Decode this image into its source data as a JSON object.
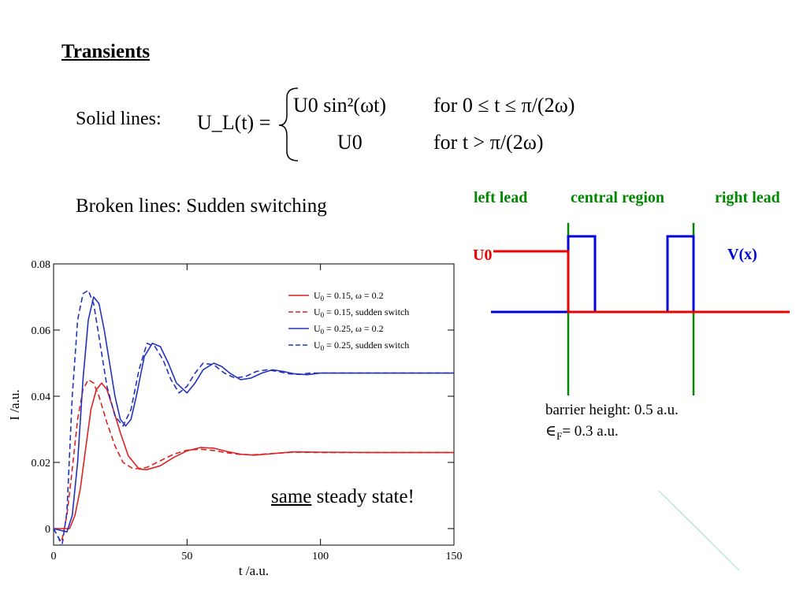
{
  "slide": {
    "title": "Transients",
    "solid_label": "Solid lines:",
    "broken_label": "Broken lines: Sudden switching"
  },
  "formula": {
    "lhs": "U_L(t) =",
    "case1_expr": "U0 sin²(ωt)",
    "case1_cond": "for 0 ≤ t ≤ π/(2ω)",
    "case2_expr": "U0",
    "case2_cond": "for t > π/(2ω)"
  },
  "potential_diagram": {
    "left_lead": "left lead",
    "central_region": "central region",
    "right_lead": "right lead",
    "u0_label": "U0",
    "vx_label": "V(x)",
    "colors": {
      "leads": "#008800",
      "potential": "#0000dd",
      "bias": "#ee0000"
    }
  },
  "notes": {
    "barrier": "barrier height: 0.5 a.u.",
    "fermi_symbol": "∈",
    "fermi_sub": "F",
    "fermi_rest": "= 0.3 a.u.",
    "same_underlined": "same",
    "same_rest": " steady state!"
  },
  "chart_data": {
    "type": "line",
    "xlabel": "t /a.u.",
    "ylabel": "I /a.u.",
    "xlim": [
      0,
      150
    ],
    "ylim": [
      -0.005,
      0.08
    ],
    "xticks": [
      0,
      50,
      100,
      150
    ],
    "yticks": [
      0,
      0.02,
      0.04,
      0.06,
      0.08
    ],
    "ytick_labels": [
      "0",
      "0.02",
      "0.04",
      "0.06",
      "0.08"
    ],
    "legend_position": "top-right",
    "series": [
      {
        "name": "U0 = 0.15, ω = 0.2",
        "legend_main": "U",
        "legend_sub": "0",
        "legend_rest": " = 0.15, ω = 0.2",
        "color": "#dd2222",
        "dash": "solid",
        "x": [
          0,
          4,
          6,
          8,
          10,
          12,
          14,
          16,
          18,
          20,
          22,
          25,
          28,
          32,
          35,
          40,
          45,
          50,
          55,
          60,
          65,
          70,
          75,
          80,
          90,
          100,
          120,
          150
        ],
        "y": [
          0,
          0,
          0,
          0.004,
          0.012,
          0.024,
          0.036,
          0.042,
          0.044,
          0.042,
          0.037,
          0.029,
          0.022,
          0.018,
          0.0178,
          0.019,
          0.0215,
          0.0235,
          0.0245,
          0.0243,
          0.0233,
          0.0225,
          0.0222,
          0.0225,
          0.0232,
          0.0231,
          0.023,
          0.023
        ]
      },
      {
        "name": "U0 = 0.15, sudden switch",
        "legend_main": "U",
        "legend_sub": "0",
        "legend_rest": " = 0.15, sudden switch",
        "color": "#dd2222",
        "dash": "dashed",
        "x": [
          0,
          2,
          3,
          5,
          7,
          9,
          11,
          13,
          15,
          17,
          20,
          23,
          26,
          30,
          35,
          40,
          45,
          50,
          55,
          60,
          65,
          70,
          75,
          80,
          90,
          100,
          120,
          150
        ],
        "y": [
          0,
          -0.003,
          -0.004,
          0.004,
          0.018,
          0.033,
          0.042,
          0.045,
          0.044,
          0.04,
          0.032,
          0.025,
          0.02,
          0.018,
          0.0185,
          0.0205,
          0.0225,
          0.0237,
          0.024,
          0.0236,
          0.0229,
          0.0224,
          0.0223,
          0.0226,
          0.0231,
          0.023,
          0.023,
          0.023
        ]
      },
      {
        "name": "U0 = 0.25, ω = 0.2",
        "legend_main": "U",
        "legend_sub": "0",
        "legend_rest": " = 0.25, ω = 0.2",
        "color": "#2233bb",
        "dash": "solid",
        "x": [
          0,
          5,
          7,
          9,
          11,
          13,
          15,
          17,
          19,
          21,
          23,
          25,
          27,
          29,
          31,
          34,
          37,
          40,
          43,
          46,
          50,
          53,
          56,
          60,
          63,
          66,
          70,
          74,
          78,
          82,
          86,
          90,
          95,
          100,
          110,
          120,
          150
        ],
        "y": [
          0,
          -0.001,
          0.004,
          0.02,
          0.045,
          0.063,
          0.07,
          0.068,
          0.06,
          0.05,
          0.04,
          0.033,
          0.031,
          0.033,
          0.04,
          0.052,
          0.056,
          0.055,
          0.05,
          0.044,
          0.041,
          0.044,
          0.048,
          0.05,
          0.049,
          0.047,
          0.045,
          0.0455,
          0.047,
          0.048,
          0.0475,
          0.0468,
          0.0465,
          0.047,
          0.047,
          0.047,
          0.047
        ]
      },
      {
        "name": "U0 = 0.25, sudden switch",
        "legend_main": "U",
        "legend_sub": "0",
        "legend_rest": " = 0.25, sudden switch",
        "color": "#2233bb",
        "dash": "dashed",
        "x": [
          0,
          2,
          3,
          5,
          7,
          9,
          11,
          13,
          15,
          17,
          20,
          23,
          26,
          29,
          32,
          35,
          38,
          41,
          44,
          47,
          50,
          53,
          56,
          60,
          64,
          68,
          72,
          76,
          80,
          84,
          88,
          92,
          96,
          100,
          110,
          120,
          150
        ],
        "y": [
          0,
          -0.003,
          -0.006,
          0.005,
          0.04,
          0.063,
          0.071,
          0.072,
          0.068,
          0.058,
          0.043,
          0.034,
          0.031,
          0.036,
          0.048,
          0.056,
          0.055,
          0.051,
          0.045,
          0.041,
          0.043,
          0.047,
          0.05,
          0.0495,
          0.047,
          0.0455,
          0.046,
          0.0475,
          0.048,
          0.0475,
          0.0468,
          0.0466,
          0.047,
          0.047,
          0.047,
          0.047,
          0.047
        ]
      }
    ]
  }
}
